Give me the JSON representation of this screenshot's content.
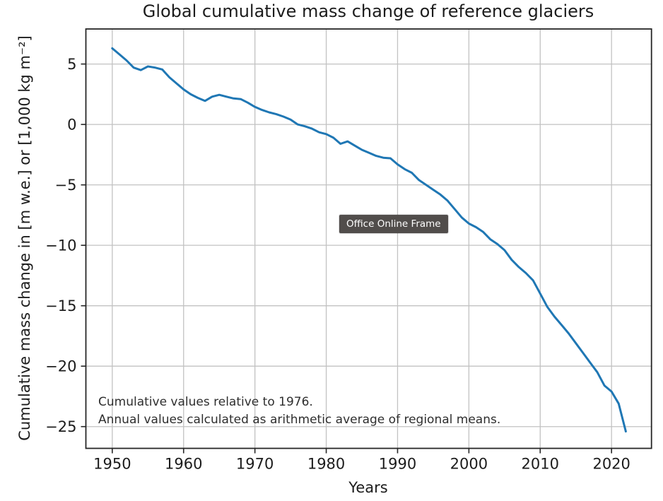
{
  "window": {
    "background": "#ffffff"
  },
  "tooltip": {
    "label": "Office Online Frame",
    "bg": "#514d4b",
    "fg": "#ffffff"
  },
  "chart_data": {
    "type": "line",
    "title": "Global cumulative mass change of reference glaciers",
    "xlabel": "Years",
    "ylabel": "Cumulative mass change in [m w.e.] or [1,000 kg m⁻²]",
    "annotation_lines": [
      "Cumulative values relative to 1976.",
      "Annual values calculated as arithmetic average of regional means."
    ],
    "x": [
      1950,
      1951,
      1952,
      1953,
      1954,
      1955,
      1956,
      1957,
      1958,
      1959,
      1960,
      1961,
      1962,
      1963,
      1964,
      1965,
      1966,
      1967,
      1968,
      1969,
      1970,
      1971,
      1972,
      1973,
      1974,
      1975,
      1976,
      1977,
      1978,
      1979,
      1980,
      1981,
      1982,
      1983,
      1984,
      1985,
      1986,
      1987,
      1988,
      1989,
      1990,
      1991,
      1992,
      1993,
      1994,
      1995,
      1996,
      1997,
      1998,
      1999,
      2000,
      2001,
      2002,
      2003,
      2004,
      2005,
      2006,
      2007,
      2008,
      2009,
      2010,
      2011,
      2012,
      2013,
      2014,
      2015,
      2016,
      2017,
      2018,
      2019,
      2020,
      2021,
      2022
    ],
    "series": [
      {
        "name": "Global cumulative mass change of reference glaciers",
        "values": [
          6.3,
          5.8,
          5.3,
          4.7,
          4.5,
          4.8,
          4.7,
          4.55,
          3.9,
          3.4,
          2.9,
          2.5,
          2.2,
          1.95,
          2.3,
          2.45,
          2.3,
          2.15,
          2.1,
          1.8,
          1.45,
          1.2,
          1.0,
          0.85,
          0.65,
          0.4,
          0.0,
          -0.15,
          -0.35,
          -0.65,
          -0.8,
          -1.1,
          -1.6,
          -1.4,
          -1.75,
          -2.1,
          -2.35,
          -2.6,
          -2.75,
          -2.8,
          -3.3,
          -3.7,
          -4.0,
          -4.6,
          -5.0,
          -5.4,
          -5.8,
          -6.3,
          -7.0,
          -7.7,
          -8.2,
          -8.5,
          -8.9,
          -9.5,
          -9.9,
          -10.4,
          -11.2,
          -11.8,
          -12.3,
          -12.9,
          -14.0,
          -15.1,
          -15.9,
          -16.6,
          -17.3,
          -18.1,
          -18.9,
          -19.7,
          -20.5,
          -21.6,
          -22.1,
          -23.1,
          -25.4
        ]
      }
    ],
    "xlim": [
      1946.3,
      2025.6
    ],
    "ylim": [
      -26.8,
      7.9
    ],
    "x_tick_values": [
      1950,
      1960,
      1970,
      1980,
      1990,
      2000,
      2010,
      2020
    ],
    "x_tick_labels": [
      "1950",
      "1960",
      "1970",
      "1980",
      "1990",
      "2000",
      "2010",
      "2020"
    ],
    "y_tick_values": [
      5,
      0,
      -5,
      -10,
      -15,
      -20,
      -25
    ],
    "y_tick_labels": [
      "5",
      "0",
      "−5",
      "−10",
      "−15",
      "−20",
      "−25"
    ],
    "grid": true,
    "legend": "none",
    "colors": {
      "line": "#1f77b4",
      "grid": "#c2c2c2",
      "spine": "#262626",
      "tick": "#262626"
    }
  }
}
